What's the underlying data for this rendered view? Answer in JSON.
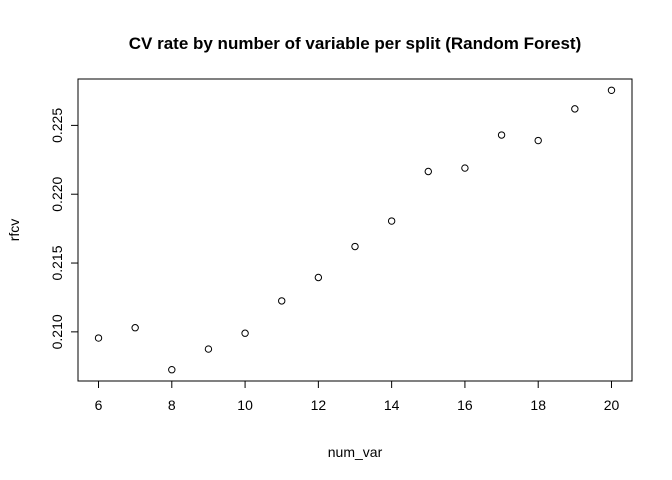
{
  "chart_data": {
    "type": "scatter",
    "title": "CV rate by number of variable per split (Random Forest)",
    "xlabel": "num_var",
    "ylabel": "rfcv",
    "x": [
      6,
      7,
      8,
      9,
      10,
      11,
      12,
      13,
      14,
      15,
      16,
      17,
      18,
      19,
      20
    ],
    "y": [
      0.20955,
      0.2103,
      0.20725,
      0.20875,
      0.2099,
      0.21225,
      0.21395,
      0.2162,
      0.21805,
      0.22165,
      0.2219,
      0.2243,
      0.2239,
      0.2262,
      0.22755
    ],
    "xlim": [
      5.44,
      20.56
    ],
    "ylim": [
      0.20643,
      0.22837
    ],
    "xticks": [
      6,
      8,
      10,
      12,
      14,
      16,
      18,
      20
    ],
    "yticks": [
      0.21,
      0.215,
      0.22,
      0.225
    ],
    "ytick_labels": [
      "0.210",
      "0.215",
      "0.220",
      "0.225"
    ],
    "grid": false,
    "marker": "open-circle",
    "marker_color": "#000000"
  }
}
